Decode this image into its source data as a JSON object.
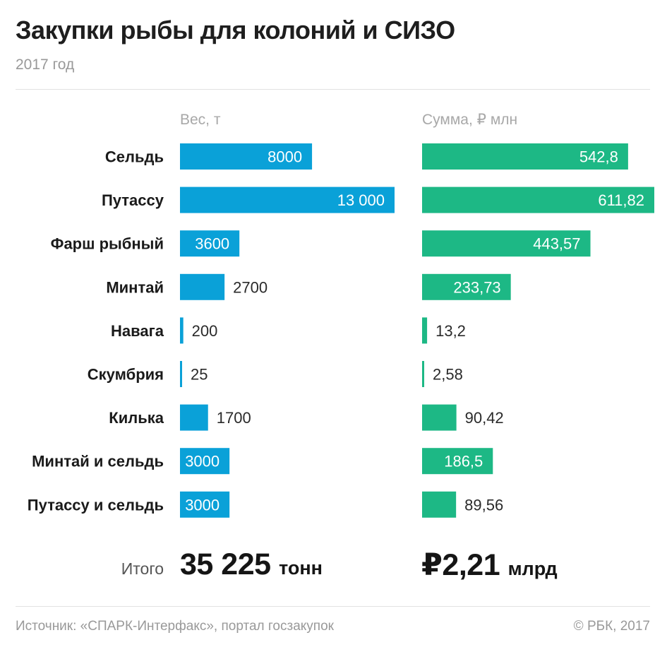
{
  "title": "Закупки рыбы для колоний и СИЗО",
  "subtitle": "2017 год",
  "colors": {
    "weight_bar": "#0aa1d8",
    "sum_bar": "#1db885"
  },
  "chart_data": [
    {
      "type": "bar",
      "orientation": "horizontal",
      "title": "Вес, т",
      "categories": [
        "Сельдь",
        "Путассу",
        "Фарш рыбный",
        "Минтай",
        "Навага",
        "Скумбрия",
        "Килька",
        "Минтай и сельдь",
        "Путассу и сельдь"
      ],
      "values": [
        8000,
        13000,
        3600,
        2700,
        200,
        25,
        1700,
        3000,
        3000
      ],
      "labels": [
        "8000",
        "13 000",
        "3600",
        "2700",
        "200",
        "25",
        "1700",
        "3000",
        "3000"
      ],
      "xlim": [
        0,
        13000
      ],
      "color": "#0aa1d8"
    },
    {
      "type": "bar",
      "orientation": "horizontal",
      "title": "Сумма, ₽ млн",
      "categories": [
        "Сельдь",
        "Путассу",
        "Фарш рыбный",
        "Минтай",
        "Навага",
        "Скумбрия",
        "Килька",
        "Минтай и сельдь",
        "Путассу и сельдь"
      ],
      "values": [
        542.8,
        611.82,
        443.57,
        233.73,
        13.2,
        2.58,
        90.42,
        186.5,
        89.56
      ],
      "labels": [
        "542,8",
        "611,82",
        "443,57",
        "233,73",
        "13,2",
        "2,58",
        "90,42",
        "186,5",
        "89,56"
      ],
      "xlim": [
        0,
        611.82
      ],
      "color": "#1db885"
    }
  ],
  "totals": {
    "label": "Итого",
    "weight_value": "35 225",
    "weight_unit": "тонн",
    "sum_value": "₽2,21",
    "sum_unit": "млрд"
  },
  "source": "Источник: «СПАРК-Интерфакс», портал госзакупок",
  "copyright": "© РБК, 2017"
}
